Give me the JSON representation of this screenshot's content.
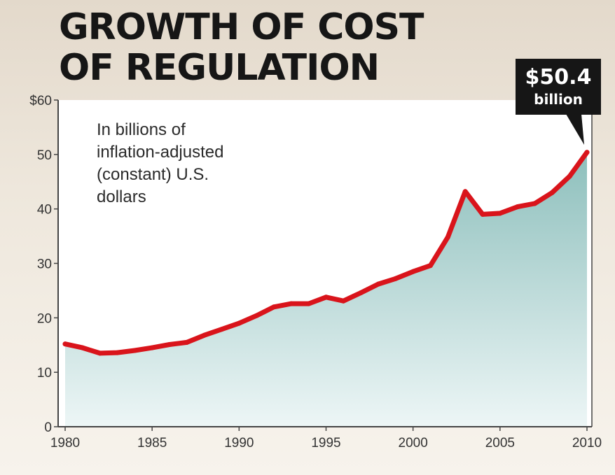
{
  "chart_data": {
    "type": "area",
    "title_lines": [
      "GROWTH OF COST",
      "OF REGULATION"
    ],
    "note_lines": [
      "In billions of",
      "inflation-adjusted",
      "(constant) U.S.",
      "dollars"
    ],
    "x": [
      1980,
      1981,
      1982,
      1983,
      1984,
      1985,
      1986,
      1987,
      1988,
      1989,
      1990,
      1991,
      1992,
      1993,
      1994,
      1995,
      1996,
      1997,
      1998,
      1999,
      2000,
      2001,
      2002,
      2003,
      2004,
      2005,
      2006,
      2007,
      2008,
      2009,
      2010
    ],
    "values": [
      15.2,
      14.5,
      13.5,
      13.6,
      14.0,
      14.5,
      15.1,
      15.5,
      16.8,
      17.9,
      19.0,
      20.4,
      22.0,
      22.6,
      22.6,
      23.8,
      23.1,
      24.6,
      26.2,
      27.2,
      28.5,
      29.6,
      34.8,
      43.2,
      39.0,
      39.2,
      40.4,
      41.0,
      43.0,
      46.0,
      50.4
    ],
    "xlim": [
      1980,
      2010
    ],
    "ylim": [
      0,
      60
    ],
    "x_ticks": [
      1980,
      1985,
      1990,
      1995,
      2000,
      2005,
      2010
    ],
    "x_tick_labels": [
      "1980",
      "1985",
      "1990",
      "1995",
      "2000",
      "2005",
      "2010"
    ],
    "y_ticks": [
      0,
      10,
      20,
      30,
      40,
      50,
      60
    ],
    "y_tick_labels": [
      "0",
      "10",
      "20",
      "30",
      "40",
      "50",
      "$60"
    ],
    "callout": {
      "value": "$50.4",
      "unit": "billion",
      "x": 2010
    },
    "colors": {
      "line": "#d9141b",
      "fill_top": "#8dbfbc",
      "fill_bottom": "#edf6f6",
      "callout_bg": "#161616",
      "plot_bg": "#ffffff"
    }
  }
}
